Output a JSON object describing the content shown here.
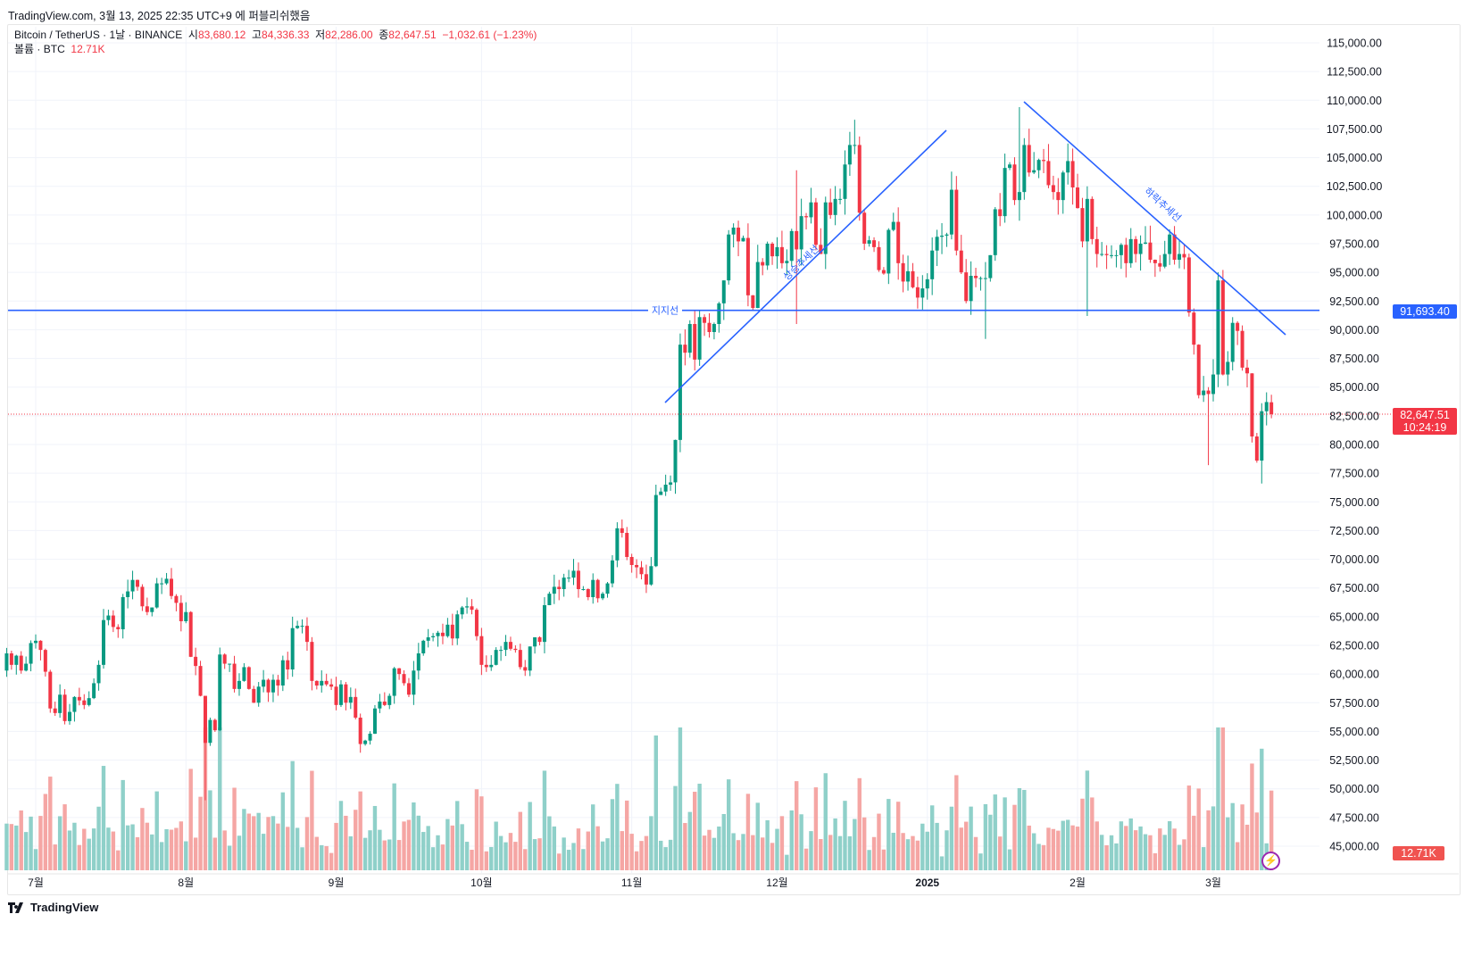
{
  "publish_note": "TradingView.com, 3월 13, 2025 22:35 UTC+9 에 퍼블리쉬했음",
  "legend": {
    "symbol": "Bitcoin / TetherUS · 1날 · BINANCE",
    "open_label": "시",
    "open": "83,680.12",
    "high_label": "고",
    "high": "84,336.33",
    "low_label": "저",
    "low": "82,286.00",
    "close_label": "종",
    "close": "82,647.51",
    "change": "−1,032.61 (−1.23%)",
    "volume_label": "볼륨 · BTC",
    "volume": "12.71K"
  },
  "price_axis": {
    "support_price_label": "91,693.40",
    "last_price_label": "82,647.51",
    "countdown": "10:24:19",
    "volume_label": "12.71K"
  },
  "drawings": {
    "support_label": "지지선",
    "uptrend_label": "상승추세선",
    "downtrend_label": "하락추세선",
    "support_price": 91693.4
  },
  "brand": "TradingView",
  "colors": {
    "up": "#089981",
    "down": "#f23645",
    "up_vol": "#8fd0c9",
    "down_vol": "#f5a6a4",
    "drawing": "#2962ff",
    "grid": "#f0f3fa"
  },
  "chart_data": {
    "type": "candlestick",
    "title": "Bitcoin / TetherUS · 1날 · BINANCE",
    "start_date": "2024-06-25",
    "first_open": 60.3,
    "last_open": 83.68012,
    "units": "thousand USDT",
    "closes": [
      61.8,
      60.8,
      61.6,
      60.3,
      60.9,
      62.7,
      62.9,
      62.1,
      60.2,
      57.0,
      56.6,
      58.2,
      55.9,
      56.7,
      58.0,
      57.7,
      57.3,
      57.9,
      59.2,
      60.8,
      64.7,
      65.1,
      64.1,
      63.9,
      66.7,
      67.2,
      68.2,
      67.6,
      65.9,
      65.4,
      65.8,
      67.9,
      67.9,
      68.3,
      66.8,
      66.2,
      64.6,
      65.4,
      61.5,
      60.7,
      58.1,
      54.0,
      56.0,
      55.1,
      61.7,
      60.9,
      60.9,
      58.7,
      59.4,
      60.6,
      58.7,
      57.5,
      58.9,
      59.5,
      58.4,
      59.5,
      59.0,
      61.2,
      60.4,
      64.0,
      64.2,
      64.2,
      62.8,
      59.4,
      59.0,
      59.4,
      59.1,
      58.9,
      57.3,
      59.1,
      57.5,
      58.0,
      56.2,
      53.9,
      54.2,
      54.8,
      57.0,
      57.6,
      57.3,
      58.1,
      60.5,
      60.0,
      59.2,
      58.2,
      60.3,
      61.8,
      62.9,
      63.2,
      63.3,
      63.6,
      63.3,
      64.3,
      63.1,
      65.2,
      65.8,
      65.9,
      65.6,
      63.3,
      60.8,
      60.6,
      60.8,
      62.1,
      62.1,
      62.8,
      62.2,
      62.1,
      60.6,
      60.3,
      62.4,
      63.2,
      62.8,
      66.0,
      67.0,
      67.6,
      67.4,
      68.4,
      68.4,
      69.0,
      67.4,
      67.4,
      66.7,
      68.2,
      66.6,
      67.0,
      67.9,
      69.9,
      72.7,
      72.3,
      70.2,
      69.5,
      69.3,
      68.7,
      67.8,
      69.4,
      75.6,
      75.9,
      76.5,
      76.7,
      80.4,
      88.7,
      88.0,
      90.5,
      87.4,
      91.1,
      90.6,
      89.8,
      90.5,
      92.3,
      94.3,
      98.3,
      98.9,
      97.7,
      98.0,
      93.0,
      91.9,
      95.9,
      95.6,
      97.5,
      96.4,
      97.2,
      95.8,
      96.0,
      98.6,
      97.0,
      99.9,
      99.8,
      101.1,
      97.4,
      96.6,
      101.1,
      100.0,
      101.4,
      101.4,
      104.4,
      106.1,
      106.1,
      100.2,
      97.5,
      97.8,
      97.2,
      95.2,
      94.9,
      98.7,
      99.4,
      95.8,
      94.2,
      95.1,
      93.7,
      92.8,
      93.6,
      94.4,
      96.9,
      98.1,
      98.2,
      98.3,
      102.2,
      96.9,
      95.0,
      92.5,
      94.7,
      94.5,
      94.5,
      94.5,
      96.5,
      100.5,
      99.9,
      104.1,
      104.4,
      101.3,
      102.0,
      106.1,
      103.7,
      103.9,
      104.8,
      104.7,
      102.6,
      102.0,
      101.3,
      103.7,
      104.7,
      102.4,
      100.6,
      97.7,
      101.4,
      97.9,
      96.6,
      96.6,
      96.5,
      96.5,
      96.5,
      97.4,
      95.8,
      97.9,
      96.6,
      97.5,
      97.6,
      96.1,
      95.8,
      95.5,
      96.6,
      98.3,
      96.1,
      96.6,
      96.3,
      91.5,
      88.7,
      84.3,
      84.7,
      84.4,
      86.1,
      94.3,
      86.1,
      87.2,
      90.6,
      89.9,
      86.7,
      86.2,
      80.7,
      78.6,
      82.9,
      83.7,
      82.64751
    ],
    "wick_overrides": [
      {
        "i": 41,
        "h": 56.5,
        "l": 49.0
      },
      {
        "i": 163,
        "h": 103.9,
        "l": 90.5
      },
      {
        "i": 175,
        "h": 108.3,
        "l": 105.3
      },
      {
        "i": 202,
        "h": 95.9,
        "l": 89.2
      },
      {
        "i": 209,
        "h": 109.4,
        "l": 99.5
      },
      {
        "i": 223,
        "h": 102.5,
        "l": 91.2
      },
      {
        "i": 248,
        "h": 85.0,
        "l": 78.2
      },
      {
        "i": 250,
        "h": 95.0,
        "l": 85.0
      },
      {
        "i": 259,
        "h": 83.6,
        "l": 76.6
      },
      {
        "i": 261,
        "h": 84.33633,
        "l": 82.286
      }
    ],
    "y_ticks": [
      115000,
      112500,
      110000,
      107500,
      105000,
      102500,
      100000,
      97500,
      95000,
      92500,
      90000,
      87500,
      85000,
      82500,
      80000,
      77500,
      75000,
      72500,
      70000,
      67500,
      65000,
      62500,
      60000,
      57500,
      55000,
      52500,
      50000,
      47500,
      45000
    ],
    "x_ticks": [
      {
        "label": "7월",
        "day": 6
      },
      {
        "label": "8월",
        "day": 37
      },
      {
        "label": "9월",
        "day": 68
      },
      {
        "label": "10월",
        "day": 98
      },
      {
        "label": "11월",
        "day": 129
      },
      {
        "label": "12월",
        "day": 159
      },
      {
        "label": "2025",
        "day": 190,
        "bold": true
      },
      {
        "label": "2월",
        "day": 221
      },
      {
        "label": "3월",
        "day": 249
      }
    ],
    "ylim": [
      45000,
      115000
    ]
  }
}
